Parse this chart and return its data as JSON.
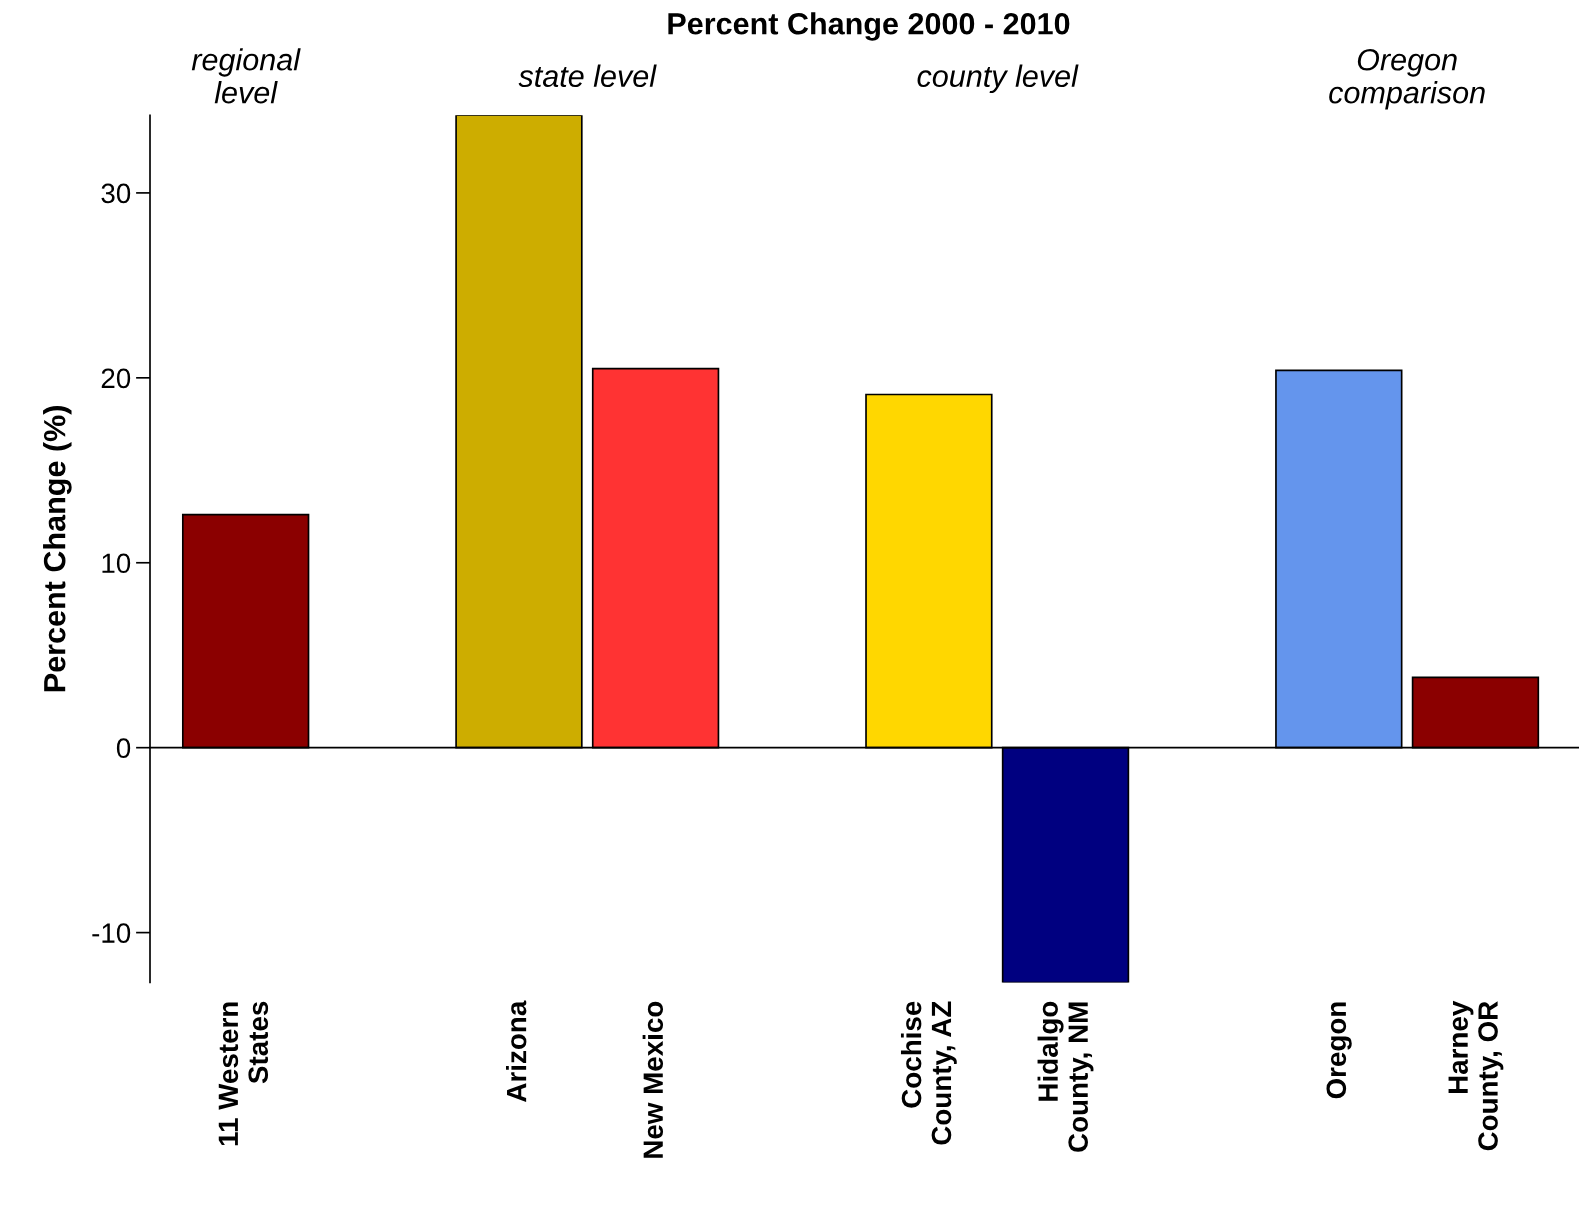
{
  "chart_data": {
    "type": "bar",
    "title": "Percent Change 2000 - 2010",
    "ylabel": "Percent Change (%)",
    "categories": [
      "11 Western\nStates",
      null,
      "Arizona",
      "New Mexico",
      null,
      "Cochise\nCounty, AZ",
      "Hidalgo\nCounty, NM",
      null,
      "Oregon",
      "Harney\nCounty, OR"
    ],
    "values": [
      12.6,
      null,
      34.2,
      20.5,
      null,
      19.1,
      -12.7,
      null,
      20.4,
      3.8
    ],
    "colors": [
      "#8b0000",
      null,
      "#cdad00",
      "#ff3333",
      null,
      "#ffd700",
      "#000080",
      null,
      "#6495ed",
      "#8b0000"
    ],
    "annotations": [
      "regional\nlevel",
      "state level",
      "county level",
      "Oregon\ncomparison"
    ],
    "ylim": [
      -12.7,
      34.2
    ],
    "yticks": [
      -10,
      0,
      10,
      20,
      30
    ],
    "ref_lines": [
      {
        "axis": "y",
        "value": 0,
        "color": "#000000"
      }
    ],
    "grid": false,
    "legend": false
  }
}
